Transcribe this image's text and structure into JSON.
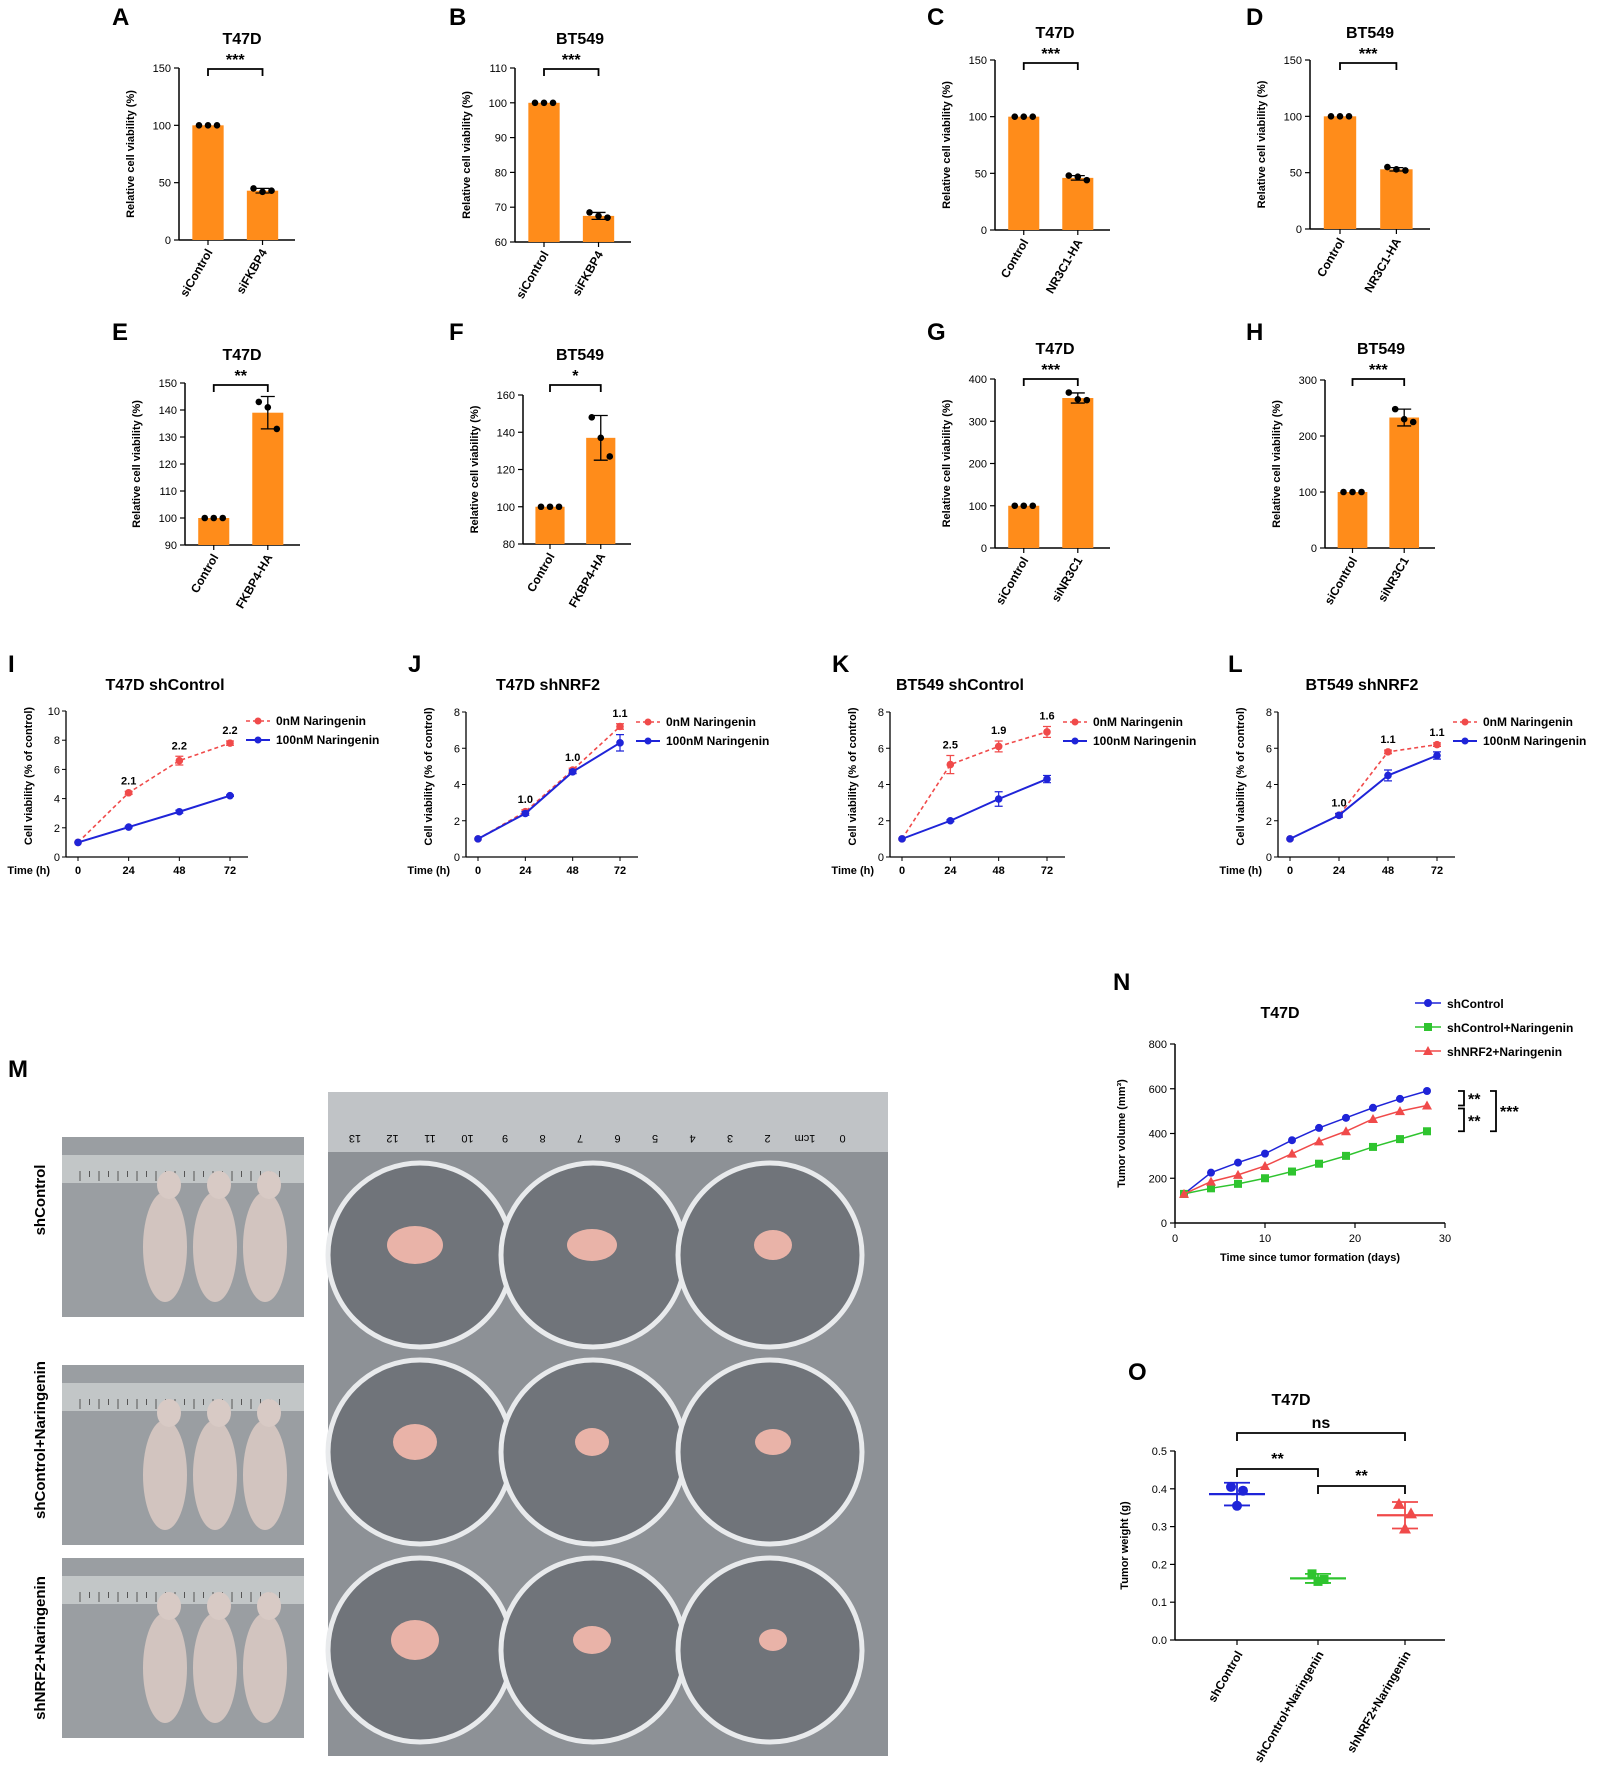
{
  "colors": {
    "bar": "#ff8c1a",
    "line_red": "#f04a4a",
    "line_blue": "#1f24d8",
    "line_green": "#2fc42f",
    "tissue": "#e9b3a8"
  },
  "photo": {
    "row_labels": [
      "shControl",
      "shControl+Naringenin",
      "shNRF2+Naringenin"
    ],
    "ruler_numbers": [
      "13",
      "12",
      "11",
      "10",
      "9",
      "8",
      "7",
      "6",
      "5",
      "4",
      "3",
      "2",
      "1cm",
      "0"
    ]
  },
  "chart_data": [
    {
      "id": "A",
      "type": "bar",
      "title": "T47D",
      "ylabel": "Relative cell viability (%)",
      "ylim": [
        0,
        150
      ],
      "yticks": [
        0,
        50,
        100,
        150
      ],
      "categories": [
        "siControl",
        "siFKBP4"
      ],
      "values": [
        100,
        43
      ],
      "points": [
        [
          100,
          100,
          100
        ],
        [
          45,
          42,
          43
        ]
      ],
      "errors": [
        0,
        2
      ],
      "significance": "***"
    },
    {
      "id": "B",
      "type": "bar",
      "title": "BT549",
      "ylabel": "Relative cell viability (%)",
      "ylim": [
        60,
        110
      ],
      "yticks": [
        60,
        70,
        80,
        90,
        100,
        110
      ],
      "categories": [
        "siControl",
        "siFKBP4"
      ],
      "values": [
        100,
        67.5
      ],
      "points": [
        [
          100,
          100,
          100
        ],
        [
          68.5,
          67.5,
          67
        ]
      ],
      "errors": [
        0,
        1
      ],
      "significance": "***"
    },
    {
      "id": "C",
      "type": "bar",
      "title": "T47D",
      "ylabel": "Relative cell viability (%)",
      "ylim": [
        0,
        150
      ],
      "yticks": [
        0,
        50,
        100,
        150
      ],
      "categories": [
        "Control",
        "NR3C1-HA"
      ],
      "values": [
        100,
        46
      ],
      "points": [
        [
          100,
          100,
          100
        ],
        [
          48,
          47,
          44
        ]
      ],
      "errors": [
        0,
        2
      ],
      "significance": "***"
    },
    {
      "id": "D",
      "type": "bar",
      "title": "BT549",
      "ylabel": "Relative cell viability (%)",
      "ylim": [
        0,
        150
      ],
      "yticks": [
        0,
        50,
        100,
        150
      ],
      "categories": [
        "Control",
        "NR3C1-HA"
      ],
      "values": [
        100,
        53
      ],
      "points": [
        [
          100,
          100,
          100
        ],
        [
          55,
          53,
          52
        ]
      ],
      "errors": [
        0,
        1.5
      ],
      "significance": "***"
    },
    {
      "id": "E",
      "type": "bar",
      "title": "T47D",
      "ylabel": "Relative cell viability (%)",
      "ylim": [
        90,
        150
      ],
      "yticks": [
        90,
        100,
        110,
        120,
        130,
        140,
        150
      ],
      "categories": [
        "Control",
        "FKBP4-HA"
      ],
      "values": [
        100,
        139
      ],
      "points": [
        [
          100,
          100,
          100
        ],
        [
          143,
          141,
          133
        ]
      ],
      "errors": [
        0,
        6
      ],
      "significance": "**"
    },
    {
      "id": "F",
      "type": "bar",
      "title": "BT549",
      "ylabel": "Relative cell viability (%)",
      "ylim": [
        80,
        160
      ],
      "yticks": [
        80,
        100,
        120,
        140,
        160
      ],
      "categories": [
        "Control",
        "FKBP4-HA"
      ],
      "values": [
        100,
        137
      ],
      "points": [
        [
          100,
          100,
          100
        ],
        [
          148,
          137,
          127
        ]
      ],
      "errors": [
        0,
        12
      ],
      "significance": "*"
    },
    {
      "id": "G",
      "type": "bar",
      "title": "T47D",
      "ylabel": "Relative cell viability (%)",
      "ylim": [
        0,
        400
      ],
      "yticks": [
        0,
        100,
        200,
        300,
        400
      ],
      "categories": [
        "siControl",
        "siNR3C1"
      ],
      "values": [
        100,
        355
      ],
      "points": [
        [
          100,
          100,
          100
        ],
        [
          368,
          352,
          350
        ]
      ],
      "errors": [
        0,
        12
      ],
      "significance": "***"
    },
    {
      "id": "H",
      "type": "bar",
      "title": "BT549",
      "ylabel": "Relative cell viability (%)",
      "ylim": [
        0,
        300
      ],
      "yticks": [
        0,
        100,
        200,
        300
      ],
      "categories": [
        "siControl",
        "siNR3C1"
      ],
      "values": [
        100,
        233
      ],
      "points": [
        [
          100,
          100,
          100
        ],
        [
          248,
          230,
          225
        ]
      ],
      "errors": [
        0,
        15
      ],
      "significance": "***"
    },
    {
      "id": "I",
      "type": "line",
      "title": "T47D shControl",
      "ylabel": "Cell viability (% of control)",
      "xlabel": "Time (h)",
      "x": [
        0,
        24,
        48,
        72
      ],
      "ylim": [
        0,
        10
      ],
      "yticks": [
        0,
        2,
        4,
        6,
        8,
        10
      ],
      "series": [
        {
          "name": "0nM Naringenin",
          "values": [
            1,
            4.4,
            6.6,
            7.8
          ],
          "errors": [
            0,
            0.1,
            0.3,
            0.15
          ]
        },
        {
          "name": "100nM Naringenin",
          "values": [
            1,
            2.05,
            3.1,
            4.2
          ],
          "errors": [
            0,
            0.05,
            0.1,
            0.05
          ]
        }
      ],
      "ratio_labels": [
        {
          "x": 24,
          "label": "2.1"
        },
        {
          "x": 48,
          "label": "2.2"
        },
        {
          "x": 72,
          "label": "2.2"
        }
      ]
    },
    {
      "id": "J",
      "type": "line",
      "title": "T47D shNRF2",
      "ylabel": "Cell viability (% of control)",
      "xlabel": "Time (h)",
      "x": [
        0,
        24,
        48,
        72
      ],
      "ylim": [
        0,
        8
      ],
      "yticks": [
        0,
        2,
        4,
        6,
        8
      ],
      "series": [
        {
          "name": "0nM Naringenin",
          "values": [
            1,
            2.5,
            4.8,
            7.2
          ],
          "errors": [
            0,
            0.1,
            0.1,
            0.15
          ]
        },
        {
          "name": "100nM Naringenin",
          "values": [
            1,
            2.4,
            4.7,
            6.3
          ],
          "errors": [
            0,
            0.1,
            0.1,
            0.45
          ]
        }
      ],
      "ratio_labels": [
        {
          "x": 24,
          "label": "1.0"
        },
        {
          "x": 48,
          "label": "1.0"
        },
        {
          "x": 72,
          "label": "1.1"
        }
      ]
    },
    {
      "id": "K",
      "type": "line",
      "title": "BT549 shControl",
      "ylabel": "Cell viability (% of control)",
      "xlabel": "Time (h)",
      "x": [
        0,
        24,
        48,
        72
      ],
      "ylim": [
        0,
        8
      ],
      "yticks": [
        0,
        2,
        4,
        6,
        8
      ],
      "series": [
        {
          "name": "0nM Naringenin",
          "values": [
            1,
            5.1,
            6.1,
            6.9
          ],
          "errors": [
            0,
            0.5,
            0.3,
            0.3
          ]
        },
        {
          "name": "100nM Naringenin",
          "values": [
            1,
            2.0,
            3.2,
            4.3
          ],
          "errors": [
            0,
            0.05,
            0.4,
            0.2
          ]
        }
      ],
      "ratio_labels": [
        {
          "x": 24,
          "label": "2.5"
        },
        {
          "x": 48,
          "label": "1.9"
        },
        {
          "x": 72,
          "label": "1.6"
        }
      ]
    },
    {
      "id": "L",
      "type": "line",
      "title": "BT549 shNRF2",
      "ylabel": "Cell viability (% of control)",
      "xlabel": "Time (h)",
      "x": [
        0,
        24,
        48,
        72
      ],
      "ylim": [
        0,
        8
      ],
      "yticks": [
        0,
        2,
        4,
        6,
        8
      ],
      "series": [
        {
          "name": "0nM Naringenin",
          "values": [
            1,
            2.3,
            5.8,
            6.2
          ],
          "errors": [
            0,
            0.1,
            0.1,
            0.1
          ]
        },
        {
          "name": "100nM Naringenin",
          "values": [
            1,
            2.3,
            4.5,
            5.6
          ],
          "errors": [
            0,
            0.1,
            0.3,
            0.2
          ]
        }
      ],
      "ratio_labels": [
        {
          "x": 24,
          "label": "1.0"
        },
        {
          "x": 48,
          "label": "1.1"
        },
        {
          "x": 72,
          "label": "1.1"
        }
      ]
    },
    {
      "id": "N",
      "type": "line",
      "title": "T47D",
      "ylabel": "Tumor volume (mm³)",
      "xlabel": "Time since tumor formation (days)",
      "xlim": [
        0,
        30
      ],
      "xticks": [
        0,
        10,
        20,
        30
      ],
      "ylim": [
        0,
        800
      ],
      "yticks": [
        0,
        200,
        400,
        600,
        800
      ],
      "x": [
        1,
        4,
        7,
        10,
        13,
        16,
        19,
        22,
        25,
        28
      ],
      "series": [
        {
          "name": "shControl",
          "values": [
            130,
            225,
            270,
            310,
            370,
            425,
            470,
            515,
            555,
            590
          ]
        },
        {
          "name": "shControl+Naringenin",
          "values": [
            130,
            155,
            175,
            200,
            230,
            265,
            300,
            340,
            375,
            410
          ]
        },
        {
          "name": "shNRF2+Naringenin",
          "values": [
            130,
            185,
            215,
            255,
            310,
            365,
            410,
            465,
            500,
            525
          ]
        }
      ],
      "significance": [
        "**",
        "**",
        "***"
      ]
    },
    {
      "id": "O",
      "type": "scatter",
      "title": "T47D",
      "ylabel": "Tumor weight (g)",
      "ylim": [
        0,
        0.5
      ],
      "yticks": [
        0.0,
        0.1,
        0.2,
        0.3,
        0.4,
        0.5
      ],
      "categories": [
        "shControl",
        "shControl+Naringenin",
        "shNRF2+Naringenin"
      ],
      "points": [
        [
          0.405,
          0.395,
          0.355
        ],
        [
          0.175,
          0.16,
          0.155
        ],
        [
          0.36,
          0.335,
          0.295
        ]
      ],
      "means": [
        0.386,
        0.163,
        0.33
      ],
      "errors": [
        0.03,
        0.012,
        0.035
      ],
      "significance": [
        {
          "from": 0,
          "to": 2,
          "label": "ns"
        },
        {
          "from": 0,
          "to": 1,
          "label": "**"
        },
        {
          "from": 1,
          "to": 2,
          "label": "**"
        }
      ]
    }
  ]
}
